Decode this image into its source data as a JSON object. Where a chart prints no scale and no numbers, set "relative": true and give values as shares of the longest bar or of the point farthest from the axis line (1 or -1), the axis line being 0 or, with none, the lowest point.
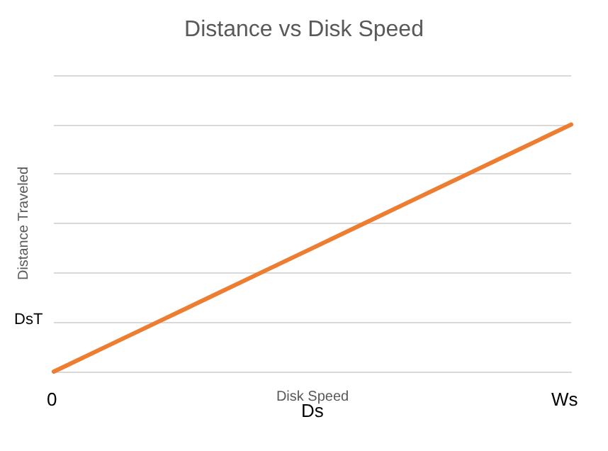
{
  "chart_data": {
    "type": "line",
    "title": "Distance vs Disk Speed",
    "xlabel": "Disk Speed",
    "ylabel": "Distance Traveled",
    "relative": true,
    "categories": [
      null,
      null,
      null,
      null,
      null,
      null,
      null,
      null,
      null,
      null,
      null
    ],
    "series": [
      {
        "color": "#ed7d31",
        "values": [
          0,
          0.1,
          0.2,
          0.3,
          0.4,
          0.5,
          0.6,
          0.7,
          0.8,
          0.9,
          1
        ]
      }
    ],
    "annotations": [
      "DsT",
      "0",
      "Ws",
      "Ds"
    ],
    "grid": "y",
    "marker": "none",
    "line_style": "solid"
  }
}
